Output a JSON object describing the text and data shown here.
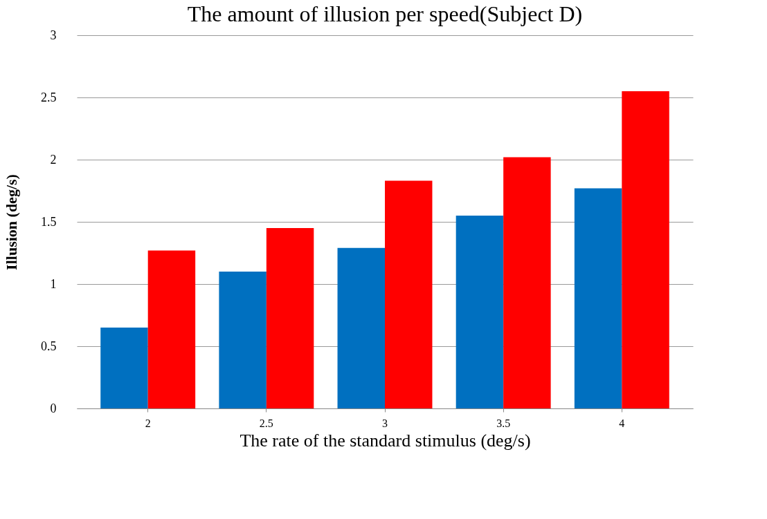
{
  "chart_data": {
    "type": "bar",
    "title": "The amount of illusion per speed(Subject D)",
    "xlabel": "The rate of the standard stimulus (deg/s)",
    "ylabel": "Illusion (deg/s)",
    "categories": [
      "2",
      "2.5",
      "3",
      "3.5",
      "4"
    ],
    "series": [
      {
        "color": "#0070c0",
        "values": [
          0.65,
          1.1,
          1.29,
          1.55,
          1.77
        ]
      },
      {
        "color": "#ff0000",
        "values": [
          1.27,
          1.45,
          1.83,
          2.02,
          2.55
        ]
      }
    ],
    "ylim": [
      0,
      3
    ],
    "yticks": [
      0,
      0.5,
      1,
      1.5,
      2,
      2.5,
      3
    ],
    "grid": "y",
    "legend": false
  }
}
